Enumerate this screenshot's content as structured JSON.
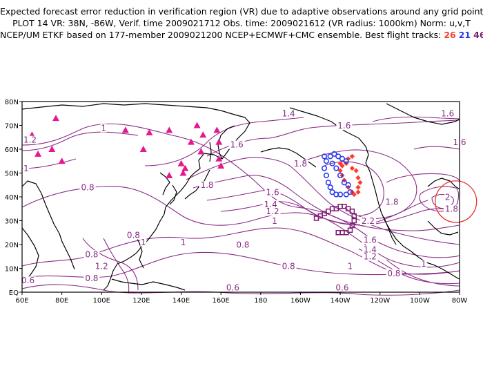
{
  "header": {
    "line1": "Expected forecast error reduction in verification region (VR) due to adaptive observations around any grid point.",
    "line2": "PLOT 14 VR: 38N, -86W, Verif. time 2009021712 Obs. time: 2009021612 (VR radius: 1000km) Norm: u,v,T",
    "line3_prefix": "NCEP/UM ETKF based on 177-member 2009021200 NCEP+ECMWF+CMC ensemble. Best flight tracks: ",
    "track1": "26",
    "track2": "21",
    "track3": "46"
  },
  "colors": {
    "contour": "#8a2b86",
    "coast": "#000000",
    "triangle": "#e6178f",
    "track_red": "#ff3a2a",
    "track_blue": "#2a3cf0",
    "track_purple": "#7d1a73",
    "vr_circle": "#e8302a"
  },
  "axes": {
    "lat_labels": [
      "80N",
      "70N",
      "60N",
      "50N",
      "40N",
      "30N",
      "20N",
      "10N",
      "EQ"
    ],
    "lon_labels": [
      "60E",
      "80E",
      "100E",
      "120E",
      "140E",
      "160E",
      "180",
      "160W",
      "140W",
      "120W",
      "100W",
      "80W"
    ]
  },
  "contour_labels": [
    {
      "text": "1.4",
      "lon": 194,
      "lat": 74
    },
    {
      "text": "1.6",
      "lon": 222,
      "lat": 69
    },
    {
      "text": "1.6",
      "lon": 274,
      "lat": 74
    },
    {
      "text": "1",
      "lon": 101,
      "lat": 68
    },
    {
      "text": "1.2",
      "lon": 64,
      "lat": 63
    },
    {
      "text": "1",
      "lon": 62,
      "lat": 51
    },
    {
      "text": "1.6",
      "lon": 168,
      "lat": 61
    },
    {
      "text": "1.6",
      "lon": 280,
      "lat": 62
    },
    {
      "text": "1.8",
      "lon": 200,
      "lat": 53
    },
    {
      "text": "0.8",
      "lon": 93,
      "lat": 43
    },
    {
      "text": "1.8",
      "lon": 153,
      "lat": 44
    },
    {
      "text": "1.6",
      "lon": 186,
      "lat": 41
    },
    {
      "text": "1.4",
      "lon": 185,
      "lat": 36
    },
    {
      "text": "1.2",
      "lon": 186,
      "lat": 33
    },
    {
      "text": "1",
      "lon": 187,
      "lat": 29
    },
    {
      "text": "1.8",
      "lon": 246,
      "lat": 37
    },
    {
      "text": "2",
      "lon": 274,
      "lat": 39
    },
    {
      "text": "1.8",
      "lon": 276,
      "lat": 34
    },
    {
      "text": "2.2",
      "lon": 234,
      "lat": 29
    },
    {
      "text": "1",
      "lon": 121,
      "lat": 20
    },
    {
      "text": "1",
      "lon": 141,
      "lat": 20
    },
    {
      "text": "0.8",
      "lon": 116,
      "lat": 23
    },
    {
      "text": "0.8",
      "lon": 171,
      "lat": 19
    },
    {
      "text": "0.8",
      "lon": 95,
      "lat": 15
    },
    {
      "text": "1.2",
      "lon": 100,
      "lat": 10
    },
    {
      "text": "0.8",
      "lon": 194,
      "lat": 10
    },
    {
      "text": "0.8",
      "lon": 95,
      "lat": 5
    },
    {
      "text": "0.6",
      "lon": 63,
      "lat": 4
    },
    {
      "text": "0.6",
      "lon": 166,
      "lat": 1
    },
    {
      "text": "1.6",
      "lon": 235,
      "lat": 21
    },
    {
      "text": "1.4",
      "lon": 235,
      "lat": 17
    },
    {
      "text": "1.2",
      "lon": 235,
      "lat": 14
    },
    {
      "text": "1",
      "lon": 225,
      "lat": 10
    },
    {
      "text": "0.8",
      "lon": 247,
      "lat": 7
    },
    {
      "text": "0.6",
      "lon": 221,
      "lat": 1
    },
    {
      "text": "1",
      "lon": 262,
      "lat": 11
    }
  ],
  "obs_sites": [
    [
      65,
      66
    ],
    [
      68,
      58
    ],
    [
      77,
      73
    ],
    [
      75,
      60
    ],
    [
      80,
      55
    ],
    [
      112,
      68
    ],
    [
      124,
      67
    ],
    [
      121,
      60
    ],
    [
      134,
      68
    ],
    [
      145,
      63
    ],
    [
      140,
      54
    ],
    [
      142,
      52
    ],
    [
      141,
      50
    ],
    [
      148,
      70
    ],
    [
      151,
      66
    ],
    [
      150,
      59
    ],
    [
      158,
      68
    ],
    [
      159,
      63
    ],
    [
      159,
      56
    ],
    [
      160,
      53
    ],
    [
      134,
      49
    ]
  ],
  "flight_tracks": {
    "track_26_red": [
      [
        220,
        54
      ],
      [
        223,
        54
      ],
      [
        226,
        52
      ],
      [
        228,
        51
      ],
      [
        229,
        48
      ],
      [
        230,
        46
      ],
      [
        229,
        44
      ],
      [
        229,
        42
      ],
      [
        227,
        41
      ],
      [
        226,
        42
      ],
      [
        224,
        44
      ],
      [
        222,
        47
      ],
      [
        221,
        49
      ],
      [
        220,
        51
      ],
      [
        221,
        53
      ],
      [
        224,
        56
      ],
      [
        226,
        57
      ]
    ],
    "track_21_blue": [
      [
        212,
        57
      ],
      [
        213,
        55
      ],
      [
        212,
        52
      ],
      [
        213,
        49
      ],
      [
        214,
        46
      ],
      [
        215,
        44
      ],
      [
        216,
        42
      ],
      [
        218,
        41
      ],
      [
        220,
        41
      ],
      [
        223,
        41
      ],
      [
        225,
        42
      ],
      [
        224,
        45
      ],
      [
        222,
        46
      ],
      [
        220,
        49
      ],
      [
        218,
        52
      ],
      [
        216,
        54
      ],
      [
        215,
        57
      ],
      [
        217,
        58
      ],
      [
        219,
        57
      ],
      [
        221,
        56
      ],
      [
        223,
        55
      ]
    ],
    "track_46_purple": [
      [
        208,
        31
      ],
      [
        210,
        32
      ],
      [
        212,
        33
      ],
      [
        214,
        34
      ],
      [
        216,
        35
      ],
      [
        218,
        35
      ],
      [
        220,
        36
      ],
      [
        222,
        36
      ],
      [
        224,
        35
      ],
      [
        226,
        34
      ],
      [
        227,
        32
      ],
      [
        227,
        30
      ],
      [
        226,
        28
      ],
      [
        225,
        26
      ],
      [
        223,
        25
      ],
      [
        221,
        25
      ],
      [
        219,
        25
      ]
    ]
  },
  "verification_region": {
    "lon": 274,
    "lat": 38,
    "label": "VR"
  }
}
